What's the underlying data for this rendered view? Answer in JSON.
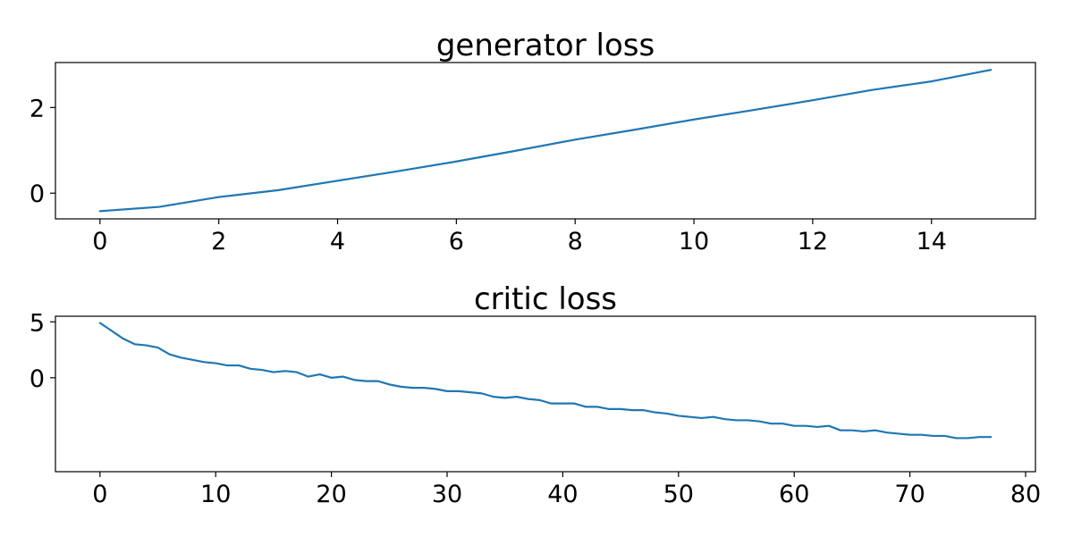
{
  "colors": {
    "line": "#1f77b4"
  },
  "chart_data": [
    {
      "type": "line",
      "title": "generator loss",
      "xlabel": "",
      "ylabel": "",
      "grid": false,
      "xlim": [
        -0.75,
        15.75
      ],
      "ylim": [
        -0.6,
        3.05
      ],
      "xticks": [
        0,
        2,
        4,
        6,
        8,
        10,
        12,
        14
      ],
      "xtick_labels": [
        "0",
        "2",
        "4",
        "6",
        "8",
        "10",
        "12",
        "14"
      ],
      "yticks": [
        0,
        2
      ],
      "ytick_labels": [
        "0",
        "2"
      ],
      "series": [
        {
          "x": [
            0,
            1,
            2,
            3,
            4,
            5,
            6,
            7,
            8,
            9,
            10,
            11,
            12,
            13,
            14,
            15
          ],
          "values": [
            -0.42,
            -0.32,
            -0.09,
            0.07,
            0.29,
            0.51,
            0.74,
            0.99,
            1.25,
            1.48,
            1.72,
            1.94,
            2.17,
            2.41,
            2.61,
            2.88
          ]
        }
      ]
    },
    {
      "type": "line",
      "title": "critic loss",
      "xlabel": "",
      "ylabel": "",
      "grid": false,
      "xlim": [
        -3.85,
        80.85
      ],
      "ylim": [
        -8.4,
        5.5
      ],
      "xticks": [
        0,
        10,
        20,
        30,
        40,
        50,
        60,
        70,
        80
      ],
      "xtick_labels": [
        "0",
        "10",
        "20",
        "30",
        "40",
        "50",
        "60",
        "70",
        "80"
      ],
      "yticks": [
        0,
        5
      ],
      "ytick_labels": [
        "0",
        "5"
      ],
      "series": [
        {
          "x": [
            0,
            1,
            2,
            3,
            4,
            5,
            6,
            7,
            8,
            9,
            10,
            11,
            12,
            13,
            14,
            15,
            16,
            17,
            18,
            19,
            20,
            21,
            22,
            23,
            24,
            25,
            26,
            27,
            28,
            29,
            30,
            31,
            32,
            33,
            34,
            35,
            36,
            37,
            38,
            39,
            40,
            41,
            42,
            43,
            44,
            45,
            46,
            47,
            48,
            49,
            50,
            51,
            52,
            53,
            54,
            55,
            56,
            57,
            58,
            59,
            60,
            61,
            62,
            63,
            64,
            65,
            66,
            67,
            68,
            69,
            70,
            71,
            72,
            73,
            74,
            75,
            76,
            77
          ],
          "values": [
            4.9,
            4.2,
            3.5,
            3.0,
            2.9,
            2.7,
            2.1,
            1.8,
            1.6,
            1.4,
            1.3,
            1.1,
            1.1,
            0.8,
            0.7,
            0.5,
            0.6,
            0.5,
            0.1,
            0.3,
            0.0,
            0.1,
            -0.2,
            -0.3,
            -0.3,
            -0.6,
            -0.8,
            -0.9,
            -0.9,
            -1.0,
            -1.2,
            -1.2,
            -1.3,
            -1.4,
            -1.7,
            -1.8,
            -1.7,
            -1.9,
            -2.0,
            -2.3,
            -2.3,
            -2.3,
            -2.6,
            -2.6,
            -2.8,
            -2.8,
            -2.9,
            -2.9,
            -3.1,
            -3.2,
            -3.4,
            -3.5,
            -3.6,
            -3.5,
            -3.7,
            -3.8,
            -3.8,
            -3.9,
            -4.1,
            -4.1,
            -4.3,
            -4.3,
            -4.4,
            -4.3,
            -4.7,
            -4.7,
            -4.8,
            -4.7,
            -4.9,
            -5.0,
            -5.1,
            -5.1,
            -5.2,
            -5.2,
            -5.4,
            -5.4,
            -5.3,
            -5.3
          ]
        }
      ]
    }
  ]
}
